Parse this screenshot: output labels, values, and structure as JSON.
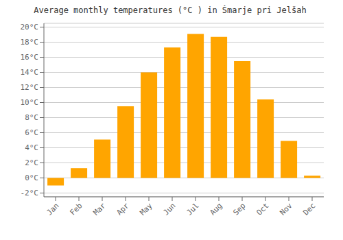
{
  "chart_data": {
    "type": "bar",
    "title": "Average monthly temperatures (°C ) in Šmarje pri Jelšah",
    "categories": [
      "Jan",
      "Feb",
      "Mar",
      "Apr",
      "May",
      "Jun",
      "Jul",
      "Aug",
      "Sep",
      "Oct",
      "Nov",
      "Dec"
    ],
    "values": [
      -1.0,
      1.3,
      5.1,
      9.5,
      14.0,
      17.3,
      19.1,
      18.7,
      15.5,
      10.4,
      4.9,
      0.3
    ],
    "color": "#FFA500",
    "ylim": [
      -2.5,
      20.5
    ],
    "yticks": [
      {
        "value": -2,
        "label": "-2°C"
      },
      {
        "value": 0,
        "label": "0°C"
      },
      {
        "value": 2,
        "label": "2°C"
      },
      {
        "value": 4,
        "label": "4°C"
      },
      {
        "value": 6,
        "label": "6°C"
      },
      {
        "value": 8,
        "label": "8°C"
      },
      {
        "value": 10,
        "label": "10°C"
      },
      {
        "value": 12,
        "label": "12°C"
      },
      {
        "value": 14,
        "label": "14°C"
      },
      {
        "value": 16,
        "label": "16°C"
      },
      {
        "value": 18,
        "label": "18°C"
      },
      {
        "value": 20,
        "label": "20°C"
      }
    ],
    "grid": true
  }
}
